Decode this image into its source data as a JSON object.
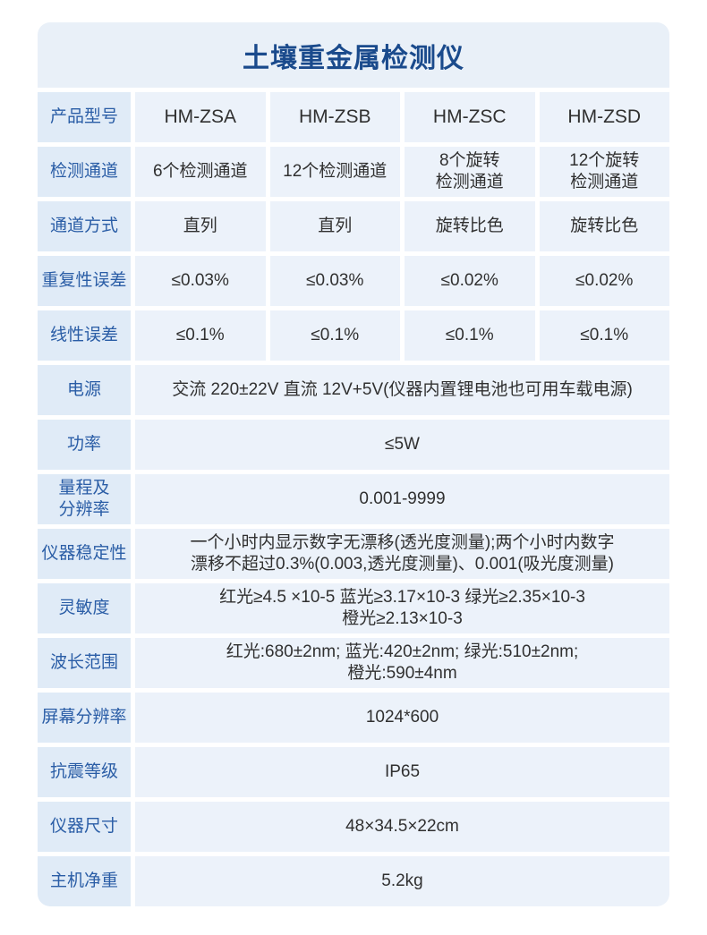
{
  "page": {
    "title": "土壤重金属检测仪"
  },
  "colors": {
    "title_text": "#1a4a8c",
    "label_text": "#2a5da6",
    "value_text": "#303030",
    "title_bg": "#e9f0f8",
    "label_cell_bg": "#e0ebf7",
    "value_cell_bg": "#ecf2fa",
    "page_bg": "#ffffff"
  },
  "table": {
    "rows": [
      {
        "label": "产品型号",
        "cells": [
          "HM-ZSA",
          "HM-ZSB",
          "HM-ZSC",
          "HM-ZSD"
        ]
      },
      {
        "label": "检测通道",
        "cells": [
          "6个检测通道",
          "12个检测通道",
          "8个旋转\n检测通道",
          "12个旋转\n检测通道"
        ]
      },
      {
        "label": "通道方式",
        "cells": [
          "直列",
          "直列",
          "旋转比色",
          "旋转比色"
        ]
      },
      {
        "label": "重复性误差",
        "cells": [
          "≤0.03%",
          "≤0.03%",
          "≤0.02%",
          "≤0.02%"
        ]
      },
      {
        "label": "线性误差",
        "cells": [
          "≤0.1%",
          "≤0.1%",
          "≤0.1%",
          "≤0.1%"
        ]
      },
      {
        "label": "电源",
        "span": "交流 220±22V 直流 12V+5V(仪器内置锂电池也可用车载电源)"
      },
      {
        "label": "功率",
        "span": "≤5W"
      },
      {
        "label": "量程及\n分辨率",
        "span": "0.001-9999"
      },
      {
        "label": "仪器稳定性",
        "span": "一个小时内显示数字无漂移(透光度测量);两个小时内数字\n漂移不超过0.3%(0.003,透光度测量)、0.001(吸光度测量)"
      },
      {
        "label": "灵敏度",
        "span": "红光≥4.5 ×10-5 蓝光≥3.17×10-3 绿光≥2.35×10-3\n橙光≥2.13×10-3"
      },
      {
        "label": "波长范围",
        "span": "红光:680±2nm; 蓝光:420±2nm; 绿光:510±2nm;\n橙光:590±4nm"
      },
      {
        "label": "屏幕分辨率",
        "span": "1024*600"
      },
      {
        "label": "抗震等级",
        "span": "IP65"
      },
      {
        "label": "仪器尺寸",
        "span": "48×34.5×22cm"
      },
      {
        "label": "主机净重",
        "span": "5.2kg"
      }
    ]
  }
}
